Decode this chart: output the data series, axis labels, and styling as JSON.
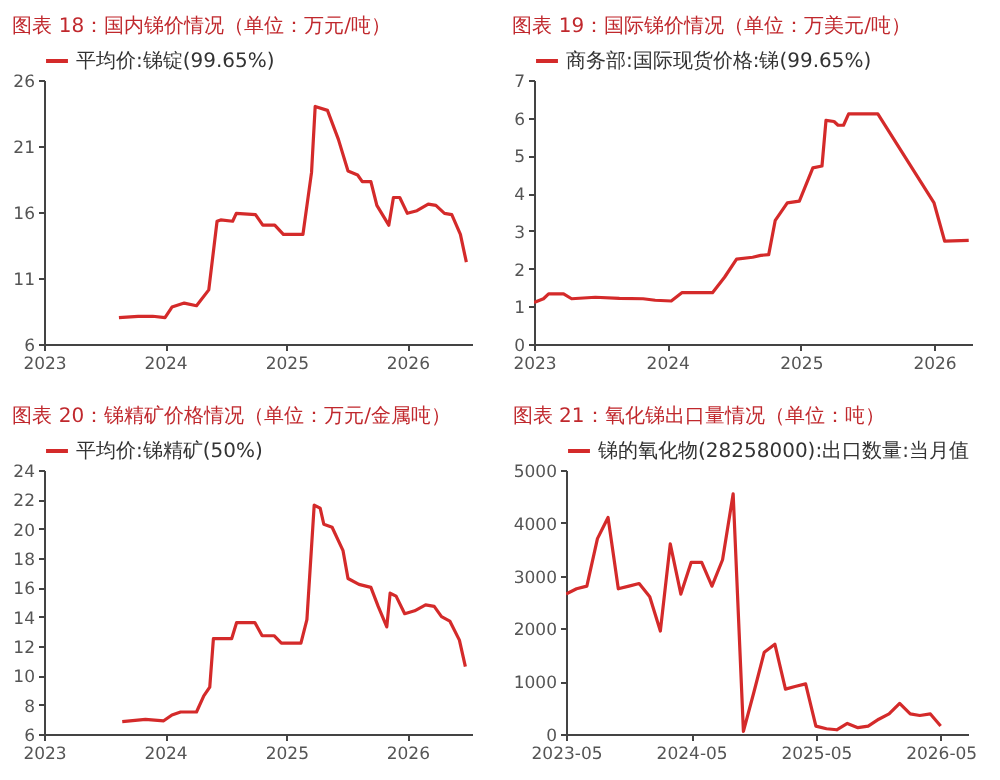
{
  "chart_data": [
    {
      "type": "line",
      "title": "图表 18：国内锑价情况（单位：万元/吨）",
      "legend": "top",
      "xlim": [
        "2023-01-01",
        "2026-07-15"
      ],
      "xticks": [
        "2023",
        "2024",
        "2025",
        "2026"
      ],
      "ylim": [
        6,
        26
      ],
      "yticks": [
        6,
        11,
        16,
        21,
        26
      ],
      "series": [
        {
          "name": "平均价:锑锭(99.65%)",
          "color": "#d42a2a",
          "x": [
            "2023-08-15",
            "2023-10-12",
            "2023-11-25",
            "2024-01-01",
            "2024-01-22",
            "2024-02-28",
            "2024-04-05",
            "2024-05-12",
            "2024-06-06",
            "2024-06-17",
            "2024-07-23",
            "2024-08-03",
            "2024-09-30",
            "2024-10-22",
            "2024-11-27",
            "2024-12-23",
            "2025-02-20",
            "2025-03-18",
            "2025-03-29",
            "2025-05-05",
            "2025-06-07",
            "2025-07-06",
            "2025-08-04",
            "2025-08-18",
            "2025-09-13",
            "2025-10-01",
            "2025-11-06",
            "2025-11-20",
            "2025-12-09",
            "2026-01-01",
            "2026-01-30",
            "2026-03-05",
            "2026-03-28",
            "2026-04-23",
            "2026-05-15",
            "2026-06-10",
            "2026-06-28"
          ],
          "values": [
            8.0,
            8.1,
            8.1,
            8.0,
            8.8,
            9.1,
            8.9,
            10.1,
            15.3,
            15.4,
            15.3,
            15.9,
            15.8,
            15.0,
            15.0,
            14.3,
            14.3,
            19.0,
            24.0,
            23.7,
            21.5,
            19.1,
            18.8,
            18.3,
            18.3,
            16.5,
            15.0,
            17.1,
            17.1,
            15.9,
            16.1,
            16.6,
            16.5,
            15.9,
            15.8,
            14.3,
            12.2
          ]
        }
      ]
    },
    {
      "type": "line",
      "title": "图表 19：国际锑价情况（单位：万美元/吨）",
      "legend": "top",
      "xlim": [
        "2023-01-01",
        "2026-04-15"
      ],
      "xticks": [
        "2023",
        "2024",
        "2025",
        "2026"
      ],
      "ylim": [
        0,
        7
      ],
      "yticks": [
        0,
        1,
        2,
        3,
        4,
        5,
        6,
        7
      ],
      "series": [
        {
          "name": "商务部:国际现货价格:锑(99.65%)",
          "color": "#d42a2a",
          "x": [
            "2023-01-01",
            "2023-01-27",
            "2023-02-10",
            "2023-03-23",
            "2023-04-14",
            "2023-06-18",
            "2023-08-23",
            "2023-10-27",
            "2023-11-29",
            "2024-01-12",
            "2024-02-10",
            "2024-05-04",
            "2024-06-06",
            "2024-07-09",
            "2024-08-22",
            "2024-09-13",
            "2024-10-05",
            "2024-10-23",
            "2024-11-25",
            "2024-12-28",
            "2025-02-03",
            "2025-02-28",
            "2025-03-11",
            "2025-04-02",
            "2025-04-13",
            "2025-04-28",
            "2025-05-12",
            "2025-07-31",
            "2026-01-01",
            "2026-01-30",
            "2026-04-06"
          ],
          "values": [
            1.1,
            1.2,
            1.33,
            1.33,
            1.2,
            1.24,
            1.21,
            1.2,
            1.16,
            1.14,
            1.36,
            1.36,
            1.77,
            2.25,
            2.3,
            2.35,
            2.37,
            3.28,
            3.74,
            3.79,
            4.67,
            4.72,
            5.93,
            5.9,
            5.8,
            5.8,
            6.1,
            6.1,
            3.74,
            2.73,
            2.75
          ]
        }
      ]
    },
    {
      "type": "line",
      "title": "图表 20：锑精矿价格情况（单位：万元/金属吨）",
      "legend": "top",
      "xlim": [
        "2023-01-01",
        "2026-07-15"
      ],
      "xticks": [
        "2023",
        "2024",
        "2025",
        "2026"
      ],
      "ylim": [
        6,
        24
      ],
      "yticks": [
        6,
        8,
        10,
        12,
        14,
        16,
        18,
        20,
        22,
        24
      ],
      "series": [
        {
          "name": "平均价:锑精矿(50%)",
          "color": "#d42a2a",
          "x": [
            "2023-08-25",
            "2023-11-03",
            "2023-12-28",
            "2024-01-22",
            "2024-02-17",
            "2024-04-05",
            "2024-04-27",
            "2024-05-15",
            "2024-05-26",
            "2024-07-20",
            "2024-08-04",
            "2024-09-28",
            "2024-10-20",
            "2024-11-25",
            "2024-12-17",
            "2025-02-14",
            "2025-03-04",
            "2025-03-26",
            "2025-04-13",
            "2025-04-24",
            "2025-05-19",
            "2025-06-21",
            "2025-07-06",
            "2025-08-08",
            "2025-09-13",
            "2025-10-05",
            "2025-10-31",
            "2025-11-10",
            "2025-11-28",
            "2025-12-24",
            "2026-01-23",
            "2026-02-25",
            "2026-03-23",
            "2026-04-14",
            "2026-05-09",
            "2026-06-07",
            "2026-06-25"
          ],
          "values": [
            6.85,
            7.0,
            6.9,
            7.3,
            7.5,
            7.5,
            8.6,
            9.2,
            12.5,
            12.5,
            13.6,
            13.6,
            12.7,
            12.7,
            12.2,
            12.2,
            13.8,
            21.6,
            21.4,
            20.3,
            20.1,
            18.5,
            16.6,
            16.2,
            16.0,
            14.7,
            13.3,
            15.6,
            15.4,
            14.2,
            14.4,
            14.8,
            14.7,
            14.0,
            13.7,
            12.4,
            10.6
          ]
        }
      ]
    },
    {
      "type": "line",
      "title": "图表 21：氧化锑出口量情况（单位：吨）",
      "legend": "top",
      "xlim": [
        "2023-05",
        "2026-07-20"
      ],
      "xticks": [
        "2023-05",
        "2024-05",
        "2025-05",
        "2026-05"
      ],
      "ylim": [
        0,
        5000
      ],
      "yticks": [
        0,
        1000,
        2000,
        3000,
        4000,
        5000
      ],
      "series": [
        {
          "name": "锑的氧化物(28258000):出口数量:当月值",
          "color": "#d42a2a",
          "x": [
            "2023-05",
            "2023-06",
            "2023-07",
            "2023-08",
            "2023-09",
            "2023-10",
            "2023-11",
            "2023-12",
            "2024-01",
            "2024-02",
            "2024-03",
            "2024-04",
            "2024-05",
            "2024-06",
            "2024-07",
            "2024-08",
            "2024-09",
            "2024-10",
            "2024-11",
            "2024-12",
            "2025-01",
            "2025-02",
            "2025-03",
            "2025-04",
            "2025-05",
            "2025-06",
            "2025-07",
            "2025-08",
            "2025-09",
            "2025-10",
            "2025-11",
            "2025-12",
            "2026-01",
            "2026-02",
            "2026-03",
            "2026-04",
            "2026-05"
          ],
          "values": [
            2650,
            2750,
            2800,
            3700,
            4100,
            2750,
            2800,
            2850,
            2600,
            1950,
            3600,
            2650,
            3250,
            3250,
            2800,
            3300,
            4550,
            50,
            800,
            1550,
            1700,
            850,
            900,
            950,
            150,
            100,
            80,
            200,
            120,
            150,
            280,
            380,
            580,
            380,
            350,
            380,
            150
          ]
        }
      ]
    }
  ]
}
